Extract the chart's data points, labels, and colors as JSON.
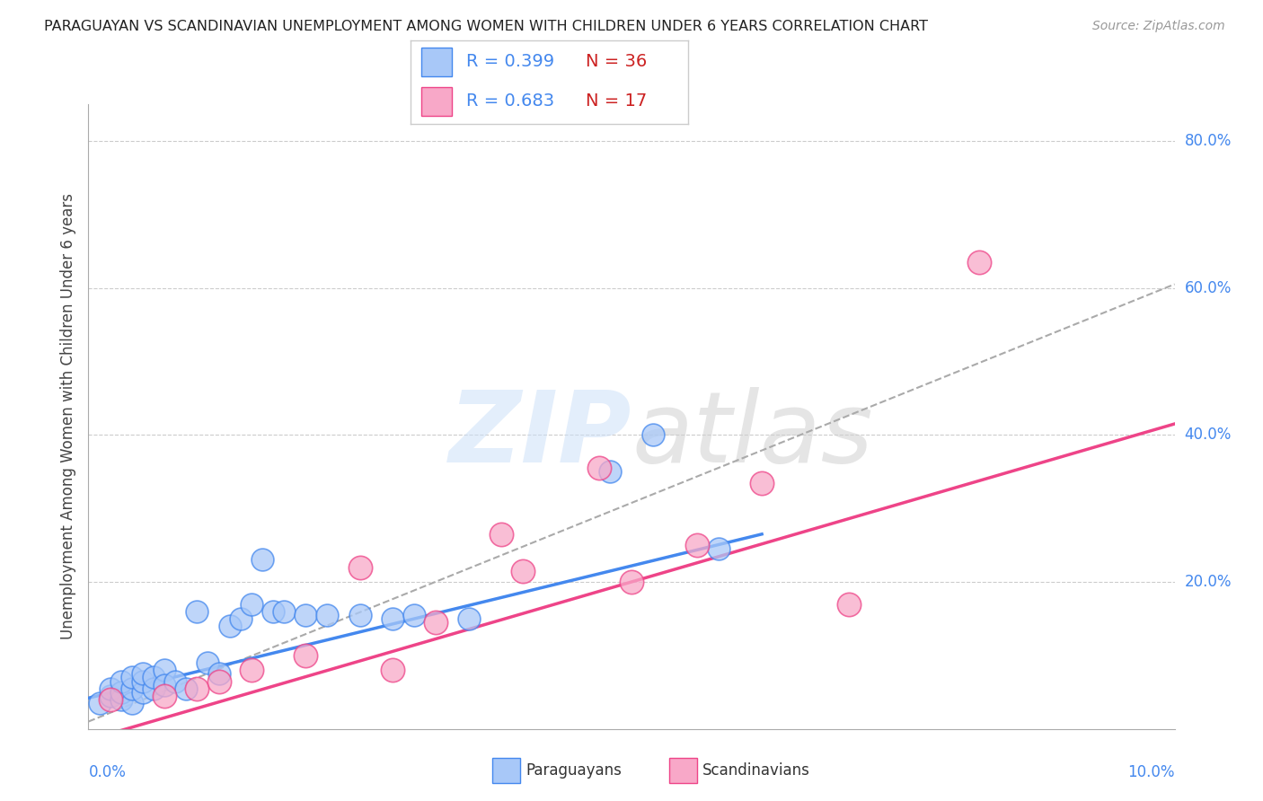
{
  "title": "PARAGUAYAN VS SCANDINAVIAN UNEMPLOYMENT AMONG WOMEN WITH CHILDREN UNDER 6 YEARS CORRELATION CHART",
  "source": "Source: ZipAtlas.com",
  "ylabel": "Unemployment Among Women with Children Under 6 years",
  "paraguayan_color": "#a8c8f8",
  "scandinavian_color": "#f8a8c8",
  "paraguayan_line_color": "#4488ee",
  "scandinavian_line_color": "#ee4488",
  "trend_line_color": "#aaaaaa",
  "background_color": "#ffffff",
  "xlim": [
    0.0,
    0.1
  ],
  "ylim": [
    0.0,
    0.85
  ],
  "right_y_ticks": [
    0.2,
    0.4,
    0.6,
    0.8
  ],
  "right_y_labels": [
    "20.0%",
    "40.0%",
    "60.0%",
    "80.0%"
  ],
  "x_left_label": "0.0%",
  "x_right_label": "10.0%",
  "legend_items": [
    {
      "R": "R = 0.399",
      "N": "N = 36",
      "color": "#a8c8f8",
      "edge": "#4488ee"
    },
    {
      "R": "R = 0.683",
      "N": "N = 17",
      "color": "#f8a8c8",
      "edge": "#ee4488"
    }
  ],
  "bottom_legend": [
    {
      "label": "Paraguayans",
      "color": "#a8c8f8",
      "edge": "#4488ee"
    },
    {
      "label": "Scandinavians",
      "color": "#f8a8c8",
      "edge": "#ee4488"
    }
  ],
  "par_x": [
    0.001,
    0.002,
    0.002,
    0.003,
    0.003,
    0.003,
    0.004,
    0.004,
    0.004,
    0.005,
    0.005,
    0.005,
    0.006,
    0.006,
    0.007,
    0.007,
    0.008,
    0.009,
    0.01,
    0.011,
    0.012,
    0.013,
    0.014,
    0.015,
    0.016,
    0.017,
    0.018,
    0.02,
    0.022,
    0.025,
    0.028,
    0.03,
    0.035,
    0.048,
    0.052,
    0.058
  ],
  "par_y": [
    0.035,
    0.045,
    0.055,
    0.04,
    0.05,
    0.065,
    0.035,
    0.055,
    0.07,
    0.05,
    0.065,
    0.075,
    0.055,
    0.07,
    0.08,
    0.06,
    0.065,
    0.055,
    0.16,
    0.09,
    0.075,
    0.14,
    0.15,
    0.17,
    0.23,
    0.16,
    0.16,
    0.155,
    0.155,
    0.155,
    0.15,
    0.155,
    0.15,
    0.35,
    0.4,
    0.245
  ],
  "sca_x": [
    0.002,
    0.007,
    0.01,
    0.012,
    0.015,
    0.02,
    0.025,
    0.028,
    0.032,
    0.038,
    0.04,
    0.047,
    0.05,
    0.056,
    0.062,
    0.07,
    0.082
  ],
  "sca_y": [
    0.04,
    0.045,
    0.055,
    0.065,
    0.08,
    0.1,
    0.22,
    0.08,
    0.145,
    0.265,
    0.215,
    0.355,
    0.2,
    0.25,
    0.335,
    0.17,
    0.635
  ],
  "par_trend_x": [
    0.0,
    0.062
  ],
  "par_trend_y": [
    0.042,
    0.265
  ],
  "sca_trend_x": [
    0.0,
    0.1
  ],
  "sca_trend_y": [
    -0.015,
    0.415
  ],
  "combined_trend_x": [
    0.0,
    0.1
  ],
  "combined_trend_y": [
    0.01,
    0.605
  ],
  "N_color": "#cc2222",
  "R_color": "#4488ee",
  "title_color": "#222222",
  "source_color": "#999999",
  "ylabel_color": "#444444",
  "grid_color": "#cccccc",
  "axis_color": "#aaaaaa"
}
